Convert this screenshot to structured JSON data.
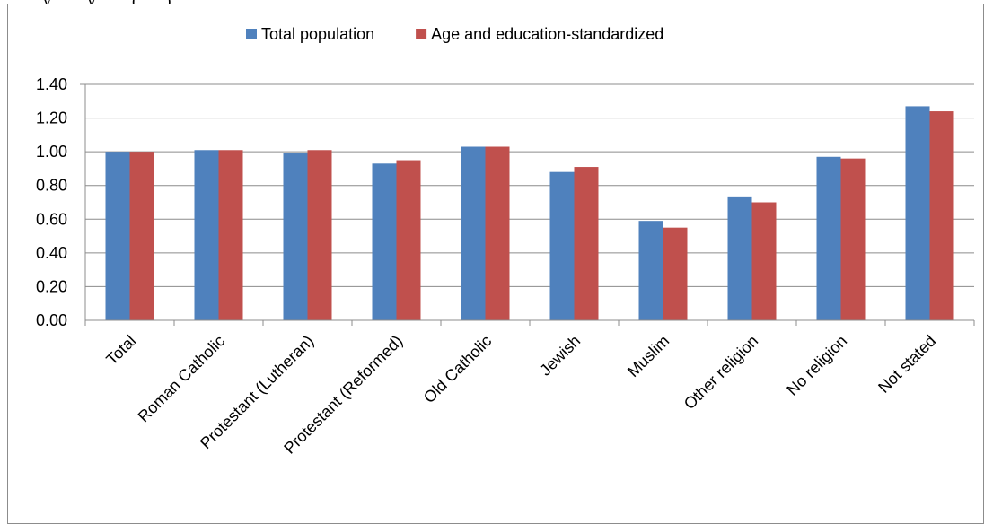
{
  "page": {
    "top_text": "... y ... ... y ... ... (... ...)"
  },
  "chart_data": {
    "type": "bar",
    "categories": [
      "Total",
      "Roman Catholic",
      "Protestant (Lutheran)",
      "Protestant (Reformed)",
      "Old Catholic",
      "Jewish",
      "Muslim",
      "Other religion",
      "No religion",
      "Not stated"
    ],
    "series": [
      {
        "name": "Total population",
        "color": "#4f81bd",
        "values": [
          1.0,
          1.01,
          0.99,
          0.93,
          1.03,
          0.88,
          0.59,
          0.73,
          0.97,
          1.27
        ]
      },
      {
        "name": "Age and education-standardized",
        "color": "#c0504d",
        "values": [
          1.0,
          1.01,
          1.01,
          0.95,
          1.03,
          0.91,
          0.55,
          0.7,
          0.96,
          1.24
        ]
      }
    ],
    "yticks": [
      "0.00",
      "0.20",
      "0.40",
      "0.60",
      "0.80",
      "1.00",
      "1.20",
      "1.40"
    ],
    "ylim": [
      0,
      1.4
    ],
    "grid": true,
    "legend_position": "top",
    "title": "",
    "xlabel": "",
    "ylabel": ""
  }
}
